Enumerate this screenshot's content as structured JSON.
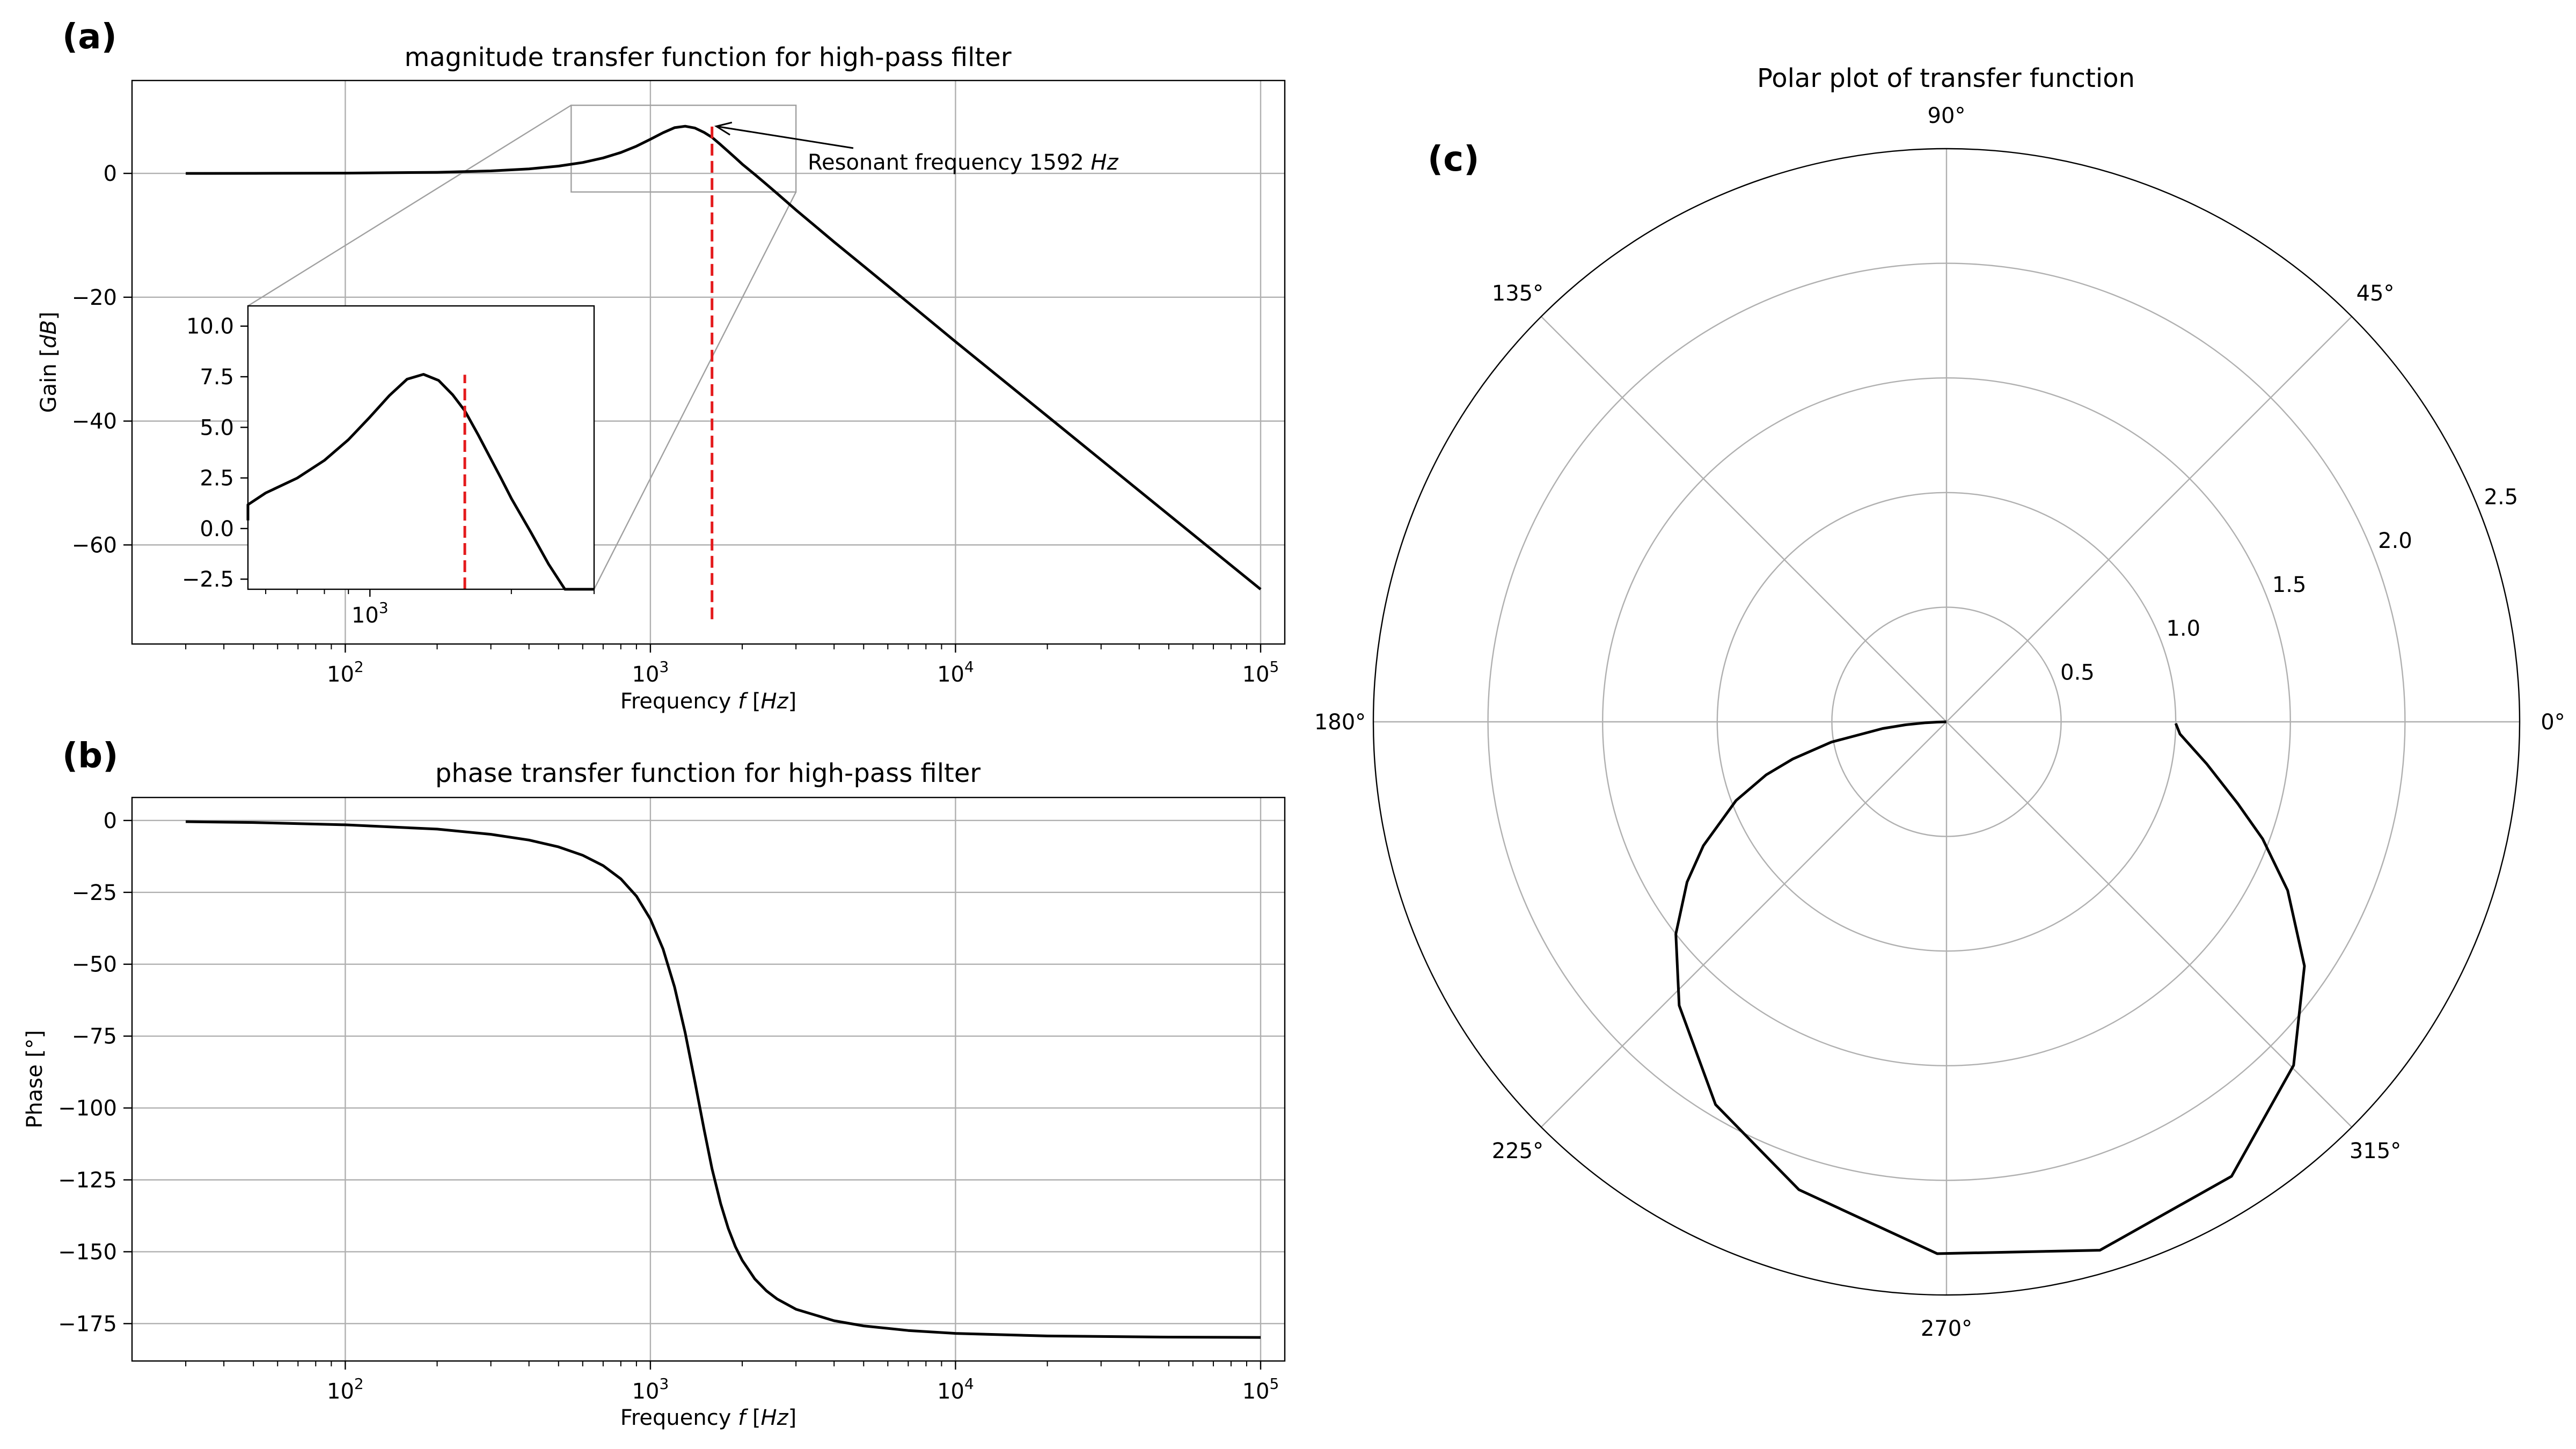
{
  "panel_labels": [
    "(a)",
    "(b)",
    "(c)"
  ],
  "annotation": {
    "text": "Resonant frequency 1592 ",
    "unit": "Hz"
  },
  "chart_data": [
    {
      "id": "magnitude",
      "type": "line",
      "title": "magnitude transfer function for high-pass filter",
      "xlabel": "Frequency ",
      "xlabel_unit": "Hz",
      "ylabel": "Gain ",
      "ylabel_unit": "dB",
      "xscale": "log",
      "xlim": [
        20,
        120000
      ],
      "ylim": [
        -76,
        15
      ],
      "xticks": [
        100,
        1000,
        10000,
        100000
      ],
      "xtick_exponents": [
        "2",
        "3",
        "4",
        "5"
      ],
      "yticks": [
        0,
        -20,
        -40,
        -60
      ],
      "ytick_labels": [
        "0",
        "−20",
        "−40",
        "−60"
      ],
      "grid": true,
      "series": [
        {
          "x": [
            30,
            50,
            100,
            200,
            300,
            400,
            500,
            600,
            700,
            800,
            900,
            1000,
            1100,
            1200,
            1300,
            1400,
            1500,
            1592,
            1700,
            1800,
            1900,
            2000,
            2200,
            2400,
            2600,
            3000,
            4000,
            5000,
            7000,
            10000,
            20000,
            50000,
            100000
          ],
          "y": [
            0.0,
            0.01,
            0.04,
            0.17,
            0.4,
            0.73,
            1.18,
            1.76,
            2.49,
            3.37,
            4.39,
            5.51,
            6.57,
            7.38,
            7.62,
            7.32,
            6.61,
            5.82,
            4.63,
            3.53,
            2.5,
            1.49,
            -0.18,
            -1.76,
            -3.23,
            -5.9,
            -11.07,
            -14.97,
            -20.88,
            -27.18,
            -39.21,
            -55.13,
            -67.17
          ]
        }
      ],
      "marker_line": {
        "x": 1592,
        "y_from": -72,
        "y_to": 7.6
      },
      "annotation_point": [
        1592,
        7.6
      ],
      "inset": {
        "xlim": [
          550,
          3000
        ],
        "ylim": [
          -3,
          11
        ],
        "xticks": [
          1000
        ],
        "xtick_exponents": [
          "3"
        ],
        "yticks": [
          10.0,
          7.5,
          5.0,
          2.5,
          0.0,
          -2.5
        ],
        "ytick_labels": [
          "10.0",
          "7.5",
          "5.0",
          "2.5",
          "0.0",
          "−2.5"
        ]
      }
    },
    {
      "id": "phase",
      "type": "line",
      "title": "phase transfer function for high-pass filter",
      "xlabel": "Frequency ",
      "xlabel_unit": "Hz",
      "ylabel": "Phase [°]",
      "xscale": "log",
      "xlim": [
        20,
        120000
      ],
      "ylim": [
        -188,
        8
      ],
      "xticks": [
        100,
        1000,
        10000,
        100000
      ],
      "xtick_exponents": [
        "2",
        "3",
        "4",
        "5"
      ],
      "yticks": [
        0,
        -25,
        -50,
        -75,
        -100,
        -125,
        -150,
        -175
      ],
      "ytick_labels": [
        "0",
        "−25",
        "−50",
        "−75",
        "−100",
        "−125",
        "−150",
        "−175"
      ],
      "grid": true,
      "series": [
        {
          "x": [
            30,
            50,
            100,
            200,
            300,
            400,
            500,
            600,
            700,
            800,
            900,
            1000,
            1100,
            1200,
            1300,
            1400,
            1500,
            1592,
            1700,
            1800,
            1900,
            2000,
            2200,
            2400,
            2600,
            3000,
            4000,
            5000,
            7000,
            10000,
            20000,
            50000,
            100000
          ],
          "y": [
            -0.4,
            -0.7,
            -1.5,
            -3.0,
            -4.8,
            -6.8,
            -9.2,
            -12.1,
            -15.7,
            -20.3,
            -26.3,
            -34.3,
            -44.7,
            -57.9,
            -73.8,
            -91.0,
            -107.5,
            -121.1,
            -133.3,
            -141.9,
            -148.3,
            -153.0,
            -159.5,
            -163.6,
            -166.4,
            -170.0,
            -174.0,
            -175.8,
            -177.4,
            -178.4,
            -179.3,
            -179.7,
            -179.8
          ]
        }
      ]
    },
    {
      "id": "polar",
      "type": "line",
      "title": "Polar plot of transfer function",
      "rmax": 2.5,
      "rticks": [
        0.5,
        1.0,
        1.5,
        2.0,
        2.5
      ],
      "rtick_labels": [
        "0.5",
        "1.0",
        "1.5",
        "2.0",
        "2.5"
      ],
      "thetaticks": [
        0,
        45,
        90,
        135,
        180,
        225,
        270,
        315
      ],
      "thetatick_labels": [
        "0°",
        "45°",
        "90°",
        "135°",
        "180°",
        "225°",
        "270°",
        "315°"
      ],
      "series": [
        {
          "theta_deg": [
            -0.4,
            -3.0,
            -9.2,
            -15.7,
            -20.3,
            -26.3,
            -34.3,
            -44.7,
            -57.9,
            -73.8,
            -91.0,
            -107.5,
            -121.1,
            -133.3,
            -141.9,
            -148.3,
            -153.0,
            -159.5,
            -163.6,
            -166.4,
            -170.0,
            -174.0,
            -175.8,
            -177.4,
            -178.4,
            -179.3,
            -179.8
          ],
          "r": [
            1.0,
            1.02,
            1.15,
            1.32,
            1.47,
            1.66,
            1.89,
            2.13,
            2.34,
            2.4,
            2.32,
            2.14,
            1.95,
            1.7,
            1.5,
            1.33,
            1.19,
            0.98,
            0.82,
            0.69,
            0.51,
            0.28,
            0.18,
            0.09,
            0.04,
            0.011,
            0.0004
          ]
        }
      ]
    }
  ]
}
